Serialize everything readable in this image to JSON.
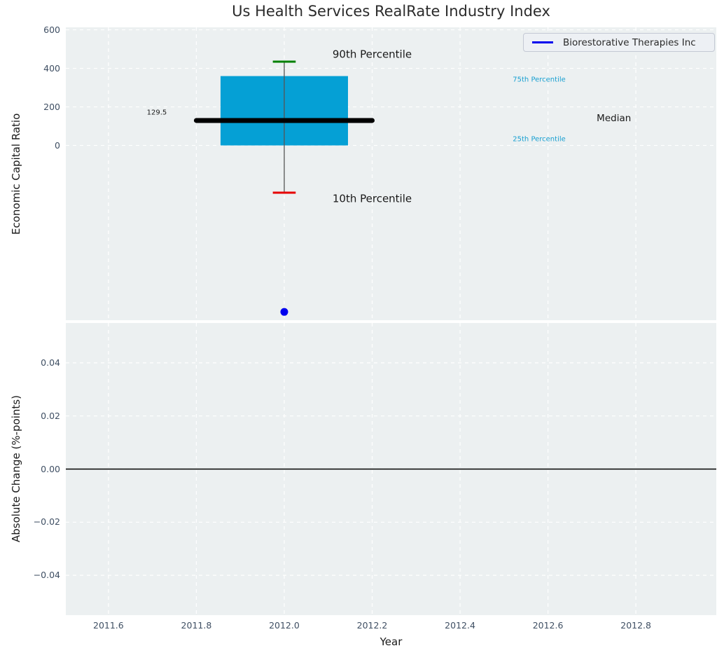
{
  "title": "Us Health Services RealRate Industry Index",
  "legend": {
    "label": "Biorestorative Therapies Inc",
    "line_color": "#0000ee"
  },
  "chart_data": {
    "type": "boxplot",
    "title": "Us Health Services RealRate Industry Index",
    "x_axis": {
      "label": "Year",
      "range": [
        2011.503,
        2012.983
      ],
      "ticks": [
        2011.6,
        2011.8,
        2012.0,
        2012.2,
        2012.4,
        2012.6,
        2012.8
      ],
      "tick_labels": [
        "2011.6",
        "2011.8",
        "2012.0",
        "2012.2",
        "2012.4",
        "2012.6",
        "2012.8"
      ]
    },
    "panels": [
      {
        "name": "economic_capital_ratio",
        "ylabel": "Economic Capital Ratio",
        "ylim": [
          -907,
          613
        ],
        "yticks": [
          0,
          200,
          400,
          600
        ],
        "ytick_labels": [
          "0",
          "200",
          "400",
          "600"
        ],
        "grid": true,
        "box": {
          "x": 2012.0,
          "p10": -245,
          "p25": 0,
          "median": 129.5,
          "p75": 360,
          "p90": 435,
          "median_label": "129.5",
          "box_half_width": 0.145,
          "median_half_width": 0.2,
          "cap_half_width": 0.026
        },
        "company_point": {
          "label": "Biorestorative Therapies Inc",
          "x": 2012.0,
          "y": -864
        },
        "annotations": [
          {
            "text": "90th Percentile",
            "x": 2012.2,
            "y": 470,
            "color": "#1a1a1a",
            "size": 15
          },
          {
            "text": "10th Percentile",
            "x": 2012.2,
            "y": -278,
            "color": "#1a1a1a",
            "size": 15
          },
          {
            "text": "75th Percentile",
            "x": 2012.58,
            "y": 340,
            "color": "#179fd1",
            "size": 10
          },
          {
            "text": "25th Percentile",
            "x": 2012.58,
            "y": 30,
            "color": "#179fd1",
            "size": 10
          },
          {
            "text": "Median",
            "x": 2012.75,
            "y": 136,
            "color": "#1a1a1a",
            "size": 13.5
          },
          {
            "text": "129.5",
            "x": 2011.71,
            "y": 168,
            "color": "#1a1a1a",
            "size": 10
          }
        ]
      },
      {
        "name": "absolute_change",
        "ylabel": "Absolute Change (%-points)",
        "xlabel": "Year",
        "ylim": [
          -0.055,
          0.055
        ],
        "yticks": [
          -0.04,
          -0.02,
          0.0,
          0.02,
          0.04
        ],
        "ytick_labels": [
          "−0.04",
          "−0.02",
          "0.00",
          "0.02",
          "0.04"
        ],
        "zero_line": 0.0,
        "grid": true
      }
    ],
    "colors": {
      "box": "#05a0d5",
      "median": "#000000",
      "cap_90": "#008000",
      "cap_10": "#e60000",
      "whisker": "#555555",
      "point": "#0000ee",
      "percentile_text": "#179fd1",
      "grid": "#ffffff",
      "axes_bg": "#ecf0f1",
      "tick_text": "#3f4f63",
      "label_text": "#1a1a1a",
      "title_text": "#2b2b2b",
      "zero_line": "#000000"
    }
  }
}
